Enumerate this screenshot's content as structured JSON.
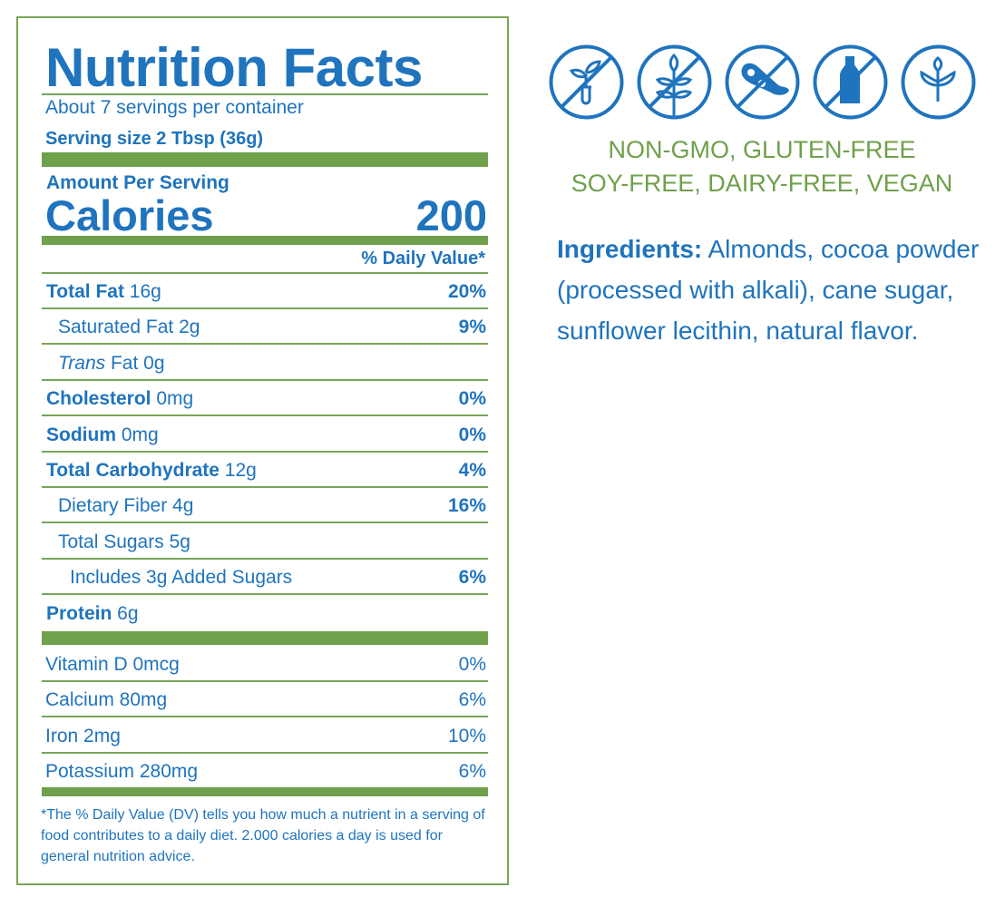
{
  "label": {
    "title": "Nutrition Facts",
    "servings": "About 7 servings per container",
    "serving_size": "Serving size 2 Tbsp (36g)",
    "amount_per_serving": "Amount Per Serving",
    "calories_label": "Calories",
    "calories_value": "200",
    "dv_header": "% Daily Value*",
    "nutrients": [
      {
        "name": "Total Fat",
        "amount": " 16g",
        "dv": "20%",
        "bold": true,
        "indent": 0
      },
      {
        "name": "Saturated Fat 2g",
        "amount": "",
        "dv": "9%",
        "bold": false,
        "indent": 1
      },
      {
        "name": "Trans",
        "amount": " Fat 0g",
        "dv": "",
        "bold": false,
        "indent": 1,
        "italic": true
      },
      {
        "name": "Cholesterol",
        "amount": " 0mg",
        "dv": "0%",
        "bold": true,
        "indent": 0
      },
      {
        "name": "Sodium",
        "amount": " 0mg",
        "dv": "0%",
        "bold": true,
        "indent": 0
      },
      {
        "name": "Total Carbohydrate",
        "amount": " 12g",
        "dv": "4%",
        "bold": true,
        "indent": 0
      },
      {
        "name": "Dietary Fiber 4g",
        "amount": "",
        "dv": "16%",
        "bold": false,
        "indent": 1
      },
      {
        "name": "Total Sugars 5g",
        "amount": "",
        "dv": "",
        "bold": false,
        "indent": 1
      },
      {
        "name": "Includes 3g Added Sugars",
        "amount": "",
        "dv": "6%",
        "bold": false,
        "indent": 2
      },
      {
        "name": "Protein",
        "amount": " 6g",
        "dv": "",
        "bold": true,
        "indent": 0
      }
    ],
    "vitamins": [
      {
        "name": "Vitamin D 0mcg",
        "dv": "0%"
      },
      {
        "name": "Calcium 80mg",
        "dv": "6%"
      },
      {
        "name": "Iron 2mg",
        "dv": "10%"
      },
      {
        "name": "Potassium 280mg",
        "dv": "6%"
      }
    ],
    "footnote": "*The % Daily Value (DV) tells you how much a nutrient in a serving of food contributes to a daily diet. 2.000 calories a day is used for general nutrition advice."
  },
  "claims": {
    "icons": [
      "non-gmo-icon",
      "gluten-free-icon",
      "soy-free-icon",
      "dairy-free-icon",
      "vegan-icon"
    ],
    "line1": "NON-GMO, GLUTEN-FREE",
    "line2": "SOY-FREE, DAIRY-FREE, VEGAN"
  },
  "ingredients": {
    "label": "Ingredients:",
    "text": " Almonds, cocoa powder (processed with alkali), cane sugar, sunflower lecithin, natural flavor."
  },
  "colors": {
    "blue": "#1f74bd",
    "green": "#6fa04b"
  }
}
